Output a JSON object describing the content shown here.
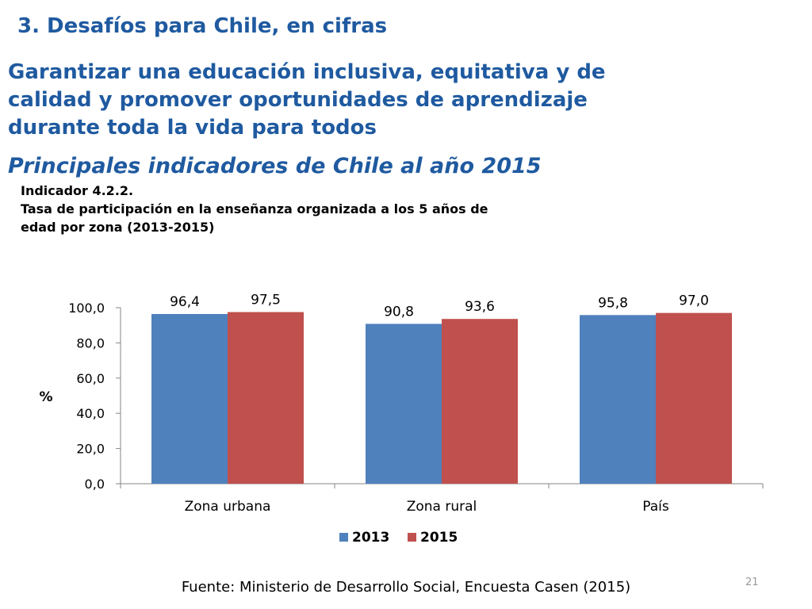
{
  "slide": {
    "heading": "3. Desafíos para Chile, en cifras",
    "goal_lines": [
      "Garantizar una educación inclusiva, equitativa y de",
      "calidad y promover oportunidades de aprendizaje",
      "durante toda la vida para todos"
    ],
    "subheading": "Principales indicadores de Chile al año 2015",
    "indicator_lines": [
      "Indicador 4.2.2.",
      "Tasa de participación en la enseñanza organizada a los 5 años de",
      "edad por zona (2013-2015)"
    ],
    "source": "Fuente: Ministerio de Desarrollo Social, Encuesta Casen (2015)",
    "page_number": "21"
  },
  "chart_data": {
    "type": "bar",
    "title": "",
    "xlabel": "",
    "ylabel": "%",
    "categories": [
      "Zona urbana",
      "Zona rural",
      "País"
    ],
    "series": [
      {
        "name": "2013",
        "color": "#4f81bd",
        "values": [
          96.4,
          90.8,
          95.8
        ],
        "labels": [
          "96,4",
          "90,8",
          "95,8"
        ]
      },
      {
        "name": "2015",
        "color": "#c0504d",
        "values": [
          97.5,
          93.6,
          97.0
        ],
        "labels": [
          "97,5",
          "93,6",
          "97,0"
        ]
      }
    ],
    "ylim": [
      0,
      100
    ],
    "yticks": [
      0,
      20,
      40,
      60,
      80,
      100
    ],
    "ytick_labels": [
      "0,0",
      "20,0",
      "40,0",
      "60,0",
      "80,0",
      "100,0"
    ],
    "grid": false,
    "legend_position": "bottom"
  }
}
